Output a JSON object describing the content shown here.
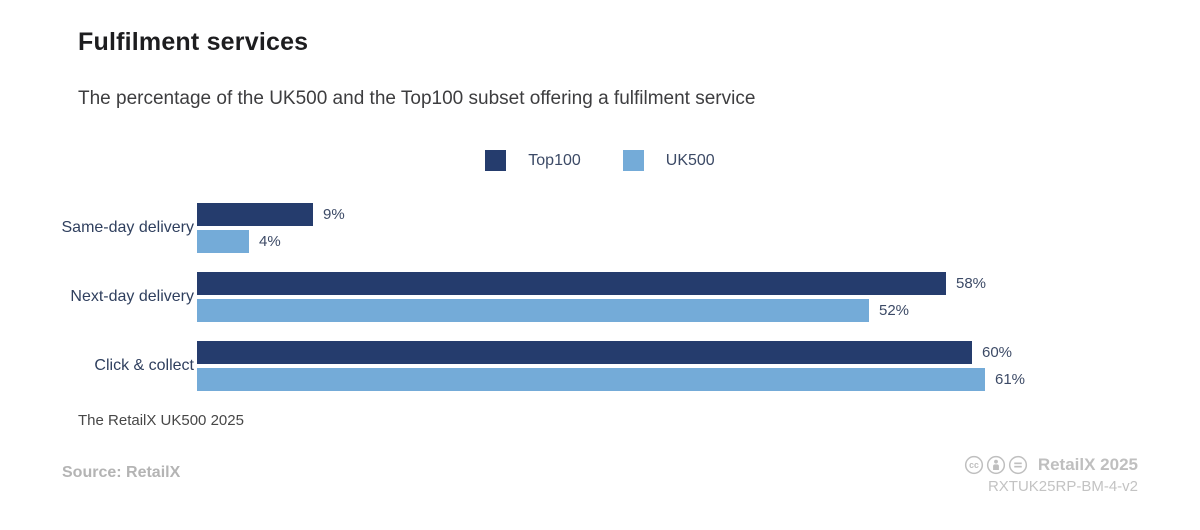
{
  "header": {
    "title": "Fulfilment services",
    "subtitle": "The percentage of the UK500 and the Top100 subset offering a fulfilment service"
  },
  "chart_data": {
    "type": "bar",
    "orientation": "horizontal",
    "title": "Fulfilment services",
    "subtitle": "The percentage of the UK500 and the Top100 subset offering a fulfilment service",
    "categories": [
      "Same-day delivery",
      "Next-day delivery",
      "Click & collect"
    ],
    "series": [
      {
        "name": "Top100",
        "color": "#253c6d",
        "values": [
          9,
          58,
          60
        ]
      },
      {
        "name": "UK500",
        "color": "#74abd8",
        "values": [
          4,
          52,
          61
        ]
      }
    ],
    "value_suffix": "%",
    "xlim": [
      0,
      61
    ],
    "grid": false,
    "legend_position": "top-center"
  },
  "colors": {
    "top100": "#253c6d",
    "uk500": "#74abd8",
    "category_label": "#2f3f5e",
    "value_label": "#3c4a66"
  },
  "footer": {
    "footnote": "The RetailX UK500 2025",
    "source": "Source: RetailX",
    "license_name": "RetailX 2025",
    "license_code": "RXTUK25RP-BM-4-v2",
    "license_icons": [
      "cc-icon",
      "cc-by-icon",
      "cc-nd-icon"
    ]
  }
}
